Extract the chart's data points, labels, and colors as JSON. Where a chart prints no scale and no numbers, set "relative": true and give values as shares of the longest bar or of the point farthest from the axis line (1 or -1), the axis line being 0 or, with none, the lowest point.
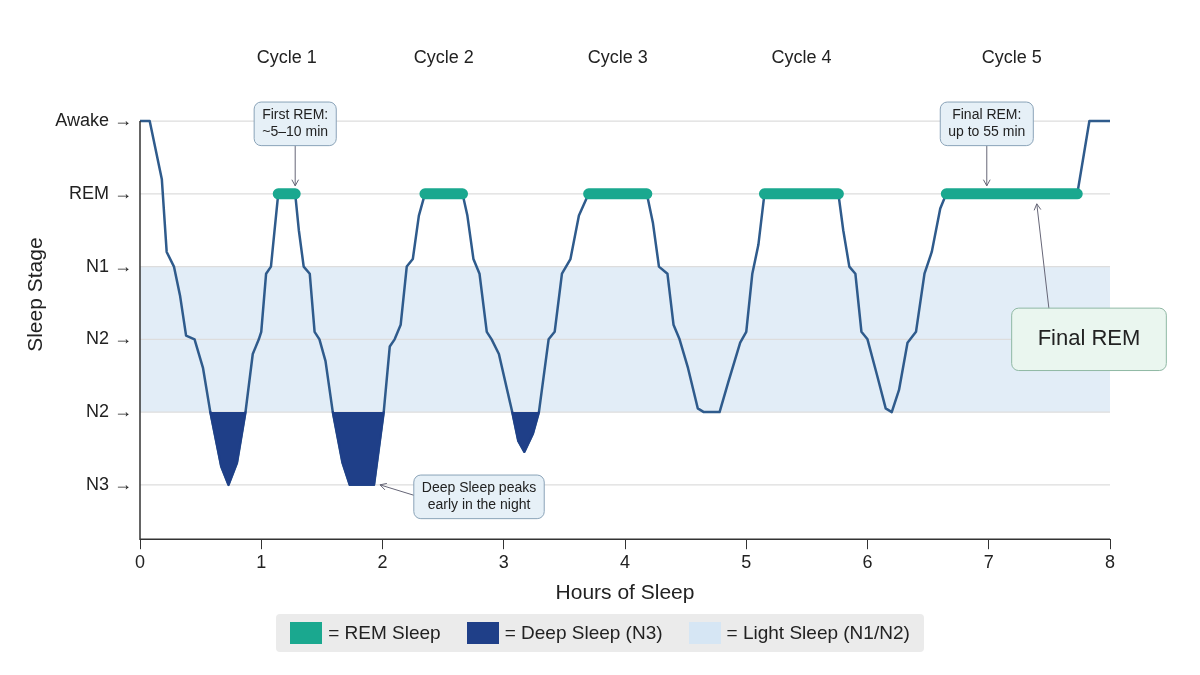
{
  "chart_data": {
    "type": "line",
    "xlabel": "Hours of Sleep",
    "ylabel": "Sleep Stage",
    "relative": true,
    "xlim": [
      0,
      8
    ],
    "xticks": [
      0,
      1,
      2,
      3,
      4,
      5,
      6,
      7,
      8
    ],
    "legend": "bottom",
    "marker": "none",
    "line_style": "solid",
    "series": [
      {
        "color": "#2f5b8c",
        "x": [
          0,
          0.08,
          0.18,
          0.22,
          0.28,
          0.33,
          0.38,
          0.45,
          0.52,
          0.58,
          0.67,
          0.73,
          0.8,
          0.87,
          0.93,
          0.98,
          1.0,
          1.04,
          1.08,
          1.11,
          1.14,
          1.28,
          1.31,
          1.35,
          1.4,
          1.44,
          1.48,
          1.53,
          1.59,
          1.67,
          1.73,
          1.93,
          1.97,
          2.01,
          2.06,
          2.1,
          2.15,
          2.2,
          2.25,
          2.3,
          2.35,
          2.66,
          2.7,
          2.75,
          2.8,
          2.86,
          2.9,
          2.96,
          3.07,
          3.12,
          3.17,
          3.24,
          3.29,
          3.37,
          3.42,
          3.48,
          3.55,
          3.62,
          3.7,
          4.18,
          4.23,
          4.28,
          4.35,
          4.4,
          4.45,
          4.52,
          4.6,
          4.65,
          4.78,
          4.85,
          4.95,
          5.0,
          5.05,
          5.1,
          5.15,
          5.76,
          5.8,
          5.85,
          5.9,
          5.95,
          6.0,
          6.08,
          6.15,
          6.2,
          6.26,
          6.33,
          6.4,
          6.47,
          6.53,
          6.6,
          6.65,
          7.73,
          7.78,
          7.83,
          8
        ],
        "values": [
          1,
          1,
          0.861,
          0.687,
          0.652,
          0.583,
          0.487,
          0.478,
          0.409,
          0.304,
          0.174,
          0.13,
          0.183,
          0.304,
          0.443,
          0.478,
          0.496,
          0.635,
          0.652,
          0.739,
          0.826,
          0.826,
          0.739,
          0.652,
          0.635,
          0.496,
          0.478,
          0.426,
          0.304,
          0.183,
          0.13,
          0.13,
          0.217,
          0.304,
          0.461,
          0.478,
          0.513,
          0.652,
          0.67,
          0.774,
          0.826,
          0.826,
          0.774,
          0.67,
          0.635,
          0.496,
          0.478,
          0.443,
          0.304,
          0.235,
          0.209,
          0.252,
          0.304,
          0.478,
          0.496,
          0.635,
          0.67,
          0.774,
          0.826,
          0.826,
          0.757,
          0.652,
          0.635,
          0.513,
          0.478,
          0.409,
          0.313,
          0.304,
          0.304,
          0.374,
          0.47,
          0.496,
          0.635,
          0.704,
          0.826,
          0.826,
          0.739,
          0.652,
          0.635,
          0.496,
          0.478,
          0.391,
          0.313,
          0.304,
          0.357,
          0.47,
          0.496,
          0.635,
          0.687,
          0.791,
          0.826,
          0.826,
          0.913,
          1,
          1
        ]
      },
      {
        "name": "= REM Sleep",
        "color": "#1aa88f",
        "x": [
          1.14,
          1.28,
          1.7,
          2.35,
          2.66,
          3.0,
          3.7,
          4.18,
          4.5,
          5.15,
          5.76,
          6.0,
          6.65,
          7.73
        ],
        "values": [
          0.826,
          0.826,
          null,
          0.826,
          0.826,
          null,
          0.826,
          0.826,
          null,
          0.826,
          0.826,
          null,
          0.826,
          0.826
        ]
      },
      {
        "name": "= Deep Sleep (N3)",
        "type": "area",
        "color": "#1f3f88",
        "x": [
          0.58,
          0.67,
          0.73,
          0.8,
          0.87,
          1.2,
          1.59,
          1.67,
          1.73,
          1.93,
          1.97,
          2.01,
          2.5,
          3.07,
          3.12,
          3.17,
          3.24,
          3.29
        ],
        "values": [
          0.304,
          0.174,
          0.13,
          0.183,
          0.304,
          null,
          0.304,
          0.183,
          0.13,
          0.13,
          0.217,
          0.304,
          null,
          0.304,
          0.235,
          0.209,
          0.252,
          0.304
        ]
      }
    ],
    "ref_lines": [
      {
        "axis": "y",
        "value": 0.13,
        "label": "N3 →",
        "color": "#dddddd"
      },
      {
        "axis": "y",
        "value": 0.304,
        "label": "N2 →",
        "color": "#dddddd"
      },
      {
        "axis": "y",
        "value": 0.478,
        "label": "N2 →",
        "color": "#dddddd"
      },
      {
        "axis": "y",
        "value": 0.652,
        "label": "N1 →",
        "color": "#dddddd"
      },
      {
        "axis": "y",
        "value": 0.826,
        "label": "REM →",
        "color": "#dddddd"
      },
      {
        "axis": "y",
        "value": 1,
        "label": "Awake →",
        "color": "#dddddd"
      }
    ],
    "bands": [
      {
        "axis": "y",
        "from": 0.304,
        "to": 0.652,
        "label": "= Light Sleep (N1/N2)",
        "color": "#d6e6f4"
      }
    ],
    "annotations": [
      "Cycle 1",
      "Cycle 2",
      "Cycle 3",
      "Cycle 4",
      "Cycle 5",
      {
        "text": "First REM:\n~5–10 min",
        "x": 1.28,
        "y": 0.826
      },
      "Final REM:\nup to 55 min",
      {
        "text": "Deep Sleep peaks\nearly in the night",
        "x": 1.93,
        "y": 0.13
      },
      "Final REM"
    ]
  }
}
